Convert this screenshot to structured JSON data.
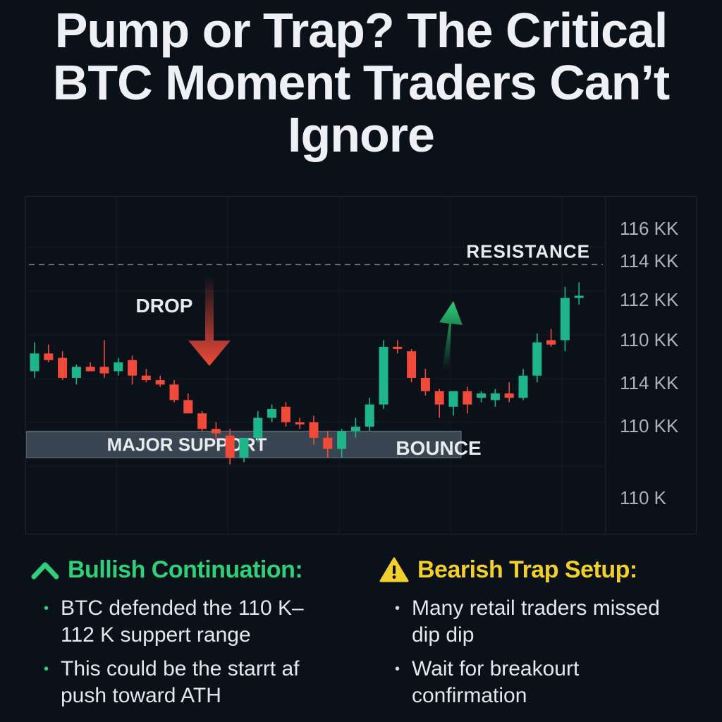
{
  "title": "Pump or Trap? The Critical BTC Moment Traders Can’t Ignore",
  "colors": {
    "background": "#0b1119",
    "up": "#1fb58a",
    "down": "#ef4a3a",
    "bullish": "#2fd07a",
    "bearish": "#f3cf2b"
  },
  "chart_data": {
    "type": "candlestick",
    "title": "Pump or Trap? The Critical BTC Moment Traders Can’t Ignore",
    "y_tick_labels": [
      "116 KK",
      "114 KK",
      "112 KK",
      "110 KK",
      "114 KK",
      "110 KK",
      "110 K"
    ],
    "ylim": [
      104.4,
      116.6
    ],
    "grid": true,
    "annotations": {
      "resistance": "RESISTANCE",
      "drop": "DROP",
      "bounce": "BOUNCE",
      "support": "MAJOR SUPPORT"
    },
    "resistance_level": 114.3,
    "support_zone": [
      105.6,
      106.8
    ],
    "candles": [
      {
        "o": 109.5,
        "h": 110.8,
        "l": 109.2,
        "c": 110.3
      },
      {
        "o": 110.3,
        "h": 110.7,
        "l": 109.9,
        "c": 110.0
      },
      {
        "o": 110.1,
        "h": 110.4,
        "l": 109.1,
        "c": 109.2
      },
      {
        "o": 109.2,
        "h": 109.8,
        "l": 108.9,
        "c": 109.7
      },
      {
        "o": 109.7,
        "h": 109.9,
        "l": 109.5,
        "c": 109.5
      },
      {
        "o": 109.7,
        "h": 110.9,
        "l": 109.2,
        "c": 109.4
      },
      {
        "o": 109.5,
        "h": 110.1,
        "l": 109.3,
        "c": 109.9
      },
      {
        "o": 110.0,
        "h": 110.2,
        "l": 108.9,
        "c": 109.3
      },
      {
        "o": 109.3,
        "h": 109.6,
        "l": 109.0,
        "c": 109.1
      },
      {
        "o": 109.1,
        "h": 109.3,
        "l": 108.8,
        "c": 108.9
      },
      {
        "o": 108.9,
        "h": 109.1,
        "l": 108.1,
        "c": 108.2
      },
      {
        "o": 108.2,
        "h": 108.5,
        "l": 107.6,
        "c": 107.6
      },
      {
        "o": 107.6,
        "h": 107.7,
        "l": 106.8,
        "c": 106.9
      },
      {
        "o": 106.9,
        "h": 107.2,
        "l": 106.4,
        "c": 106.7
      },
      {
        "o": 106.6,
        "h": 106.9,
        "l": 105.3,
        "c": 105.6
      },
      {
        "o": 105.6,
        "h": 106.5,
        "l": 105.4,
        "c": 106.5
      },
      {
        "o": 106.5,
        "h": 107.7,
        "l": 106.3,
        "c": 107.4
      },
      {
        "o": 107.4,
        "h": 108.0,
        "l": 107.2,
        "c": 107.8
      },
      {
        "o": 107.9,
        "h": 108.1,
        "l": 107.0,
        "c": 107.2
      },
      {
        "o": 107.2,
        "h": 107.4,
        "l": 106.9,
        "c": 107.1
      },
      {
        "o": 107.2,
        "h": 107.5,
        "l": 106.2,
        "c": 106.5
      },
      {
        "o": 106.5,
        "h": 106.8,
        "l": 105.6,
        "c": 106.0
      },
      {
        "o": 106.0,
        "h": 106.9,
        "l": 105.6,
        "c": 106.8
      },
      {
        "o": 106.8,
        "h": 107.4,
        "l": 106.5,
        "c": 107.0
      },
      {
        "o": 107.0,
        "h": 108.3,
        "l": 106.8,
        "c": 108.0
      },
      {
        "o": 108.0,
        "h": 110.9,
        "l": 107.8,
        "c": 110.6
      },
      {
        "o": 110.6,
        "h": 110.9,
        "l": 110.3,
        "c": 110.5
      },
      {
        "o": 110.4,
        "h": 110.5,
        "l": 109.0,
        "c": 109.2
      },
      {
        "o": 109.2,
        "h": 109.6,
        "l": 108.4,
        "c": 108.6
      },
      {
        "o": 108.6,
        "h": 108.7,
        "l": 107.4,
        "c": 108.0
      },
      {
        "o": 107.9,
        "h": 108.5,
        "l": 107.5,
        "c": 108.6
      },
      {
        "o": 108.6,
        "h": 108.8,
        "l": 107.6,
        "c": 108.0
      },
      {
        "o": 108.3,
        "h": 108.6,
        "l": 108.1,
        "c": 108.5
      },
      {
        "o": 108.2,
        "h": 108.7,
        "l": 107.9,
        "c": 108.5
      },
      {
        "o": 108.5,
        "h": 109.0,
        "l": 108.1,
        "c": 108.3
      },
      {
        "o": 108.3,
        "h": 109.6,
        "l": 108.2,
        "c": 109.3
      },
      {
        "o": 109.3,
        "h": 111.2,
        "l": 109.0,
        "c": 110.8
      },
      {
        "o": 110.9,
        "h": 111.4,
        "l": 110.6,
        "c": 110.7
      },
      {
        "o": 110.9,
        "h": 113.3,
        "l": 110.4,
        "c": 112.8
      },
      {
        "o": 112.8,
        "h": 113.5,
        "l": 112.5,
        "c": 112.9
      }
    ]
  },
  "bullish": {
    "title": "Bullish Continuation:",
    "icon": "chevron-up-icon",
    "points": [
      "BTC defended the 110 K– 112 K suppert range",
      "This could be the stаrrt af push toward ATH"
    ]
  },
  "bearish": {
    "title": "Bearish Trap Setup:",
    "icon": "warning-icon",
    "points": [
      "Many retail traders missed dip dip",
      "Wait for breakourt confirmation"
    ]
  }
}
